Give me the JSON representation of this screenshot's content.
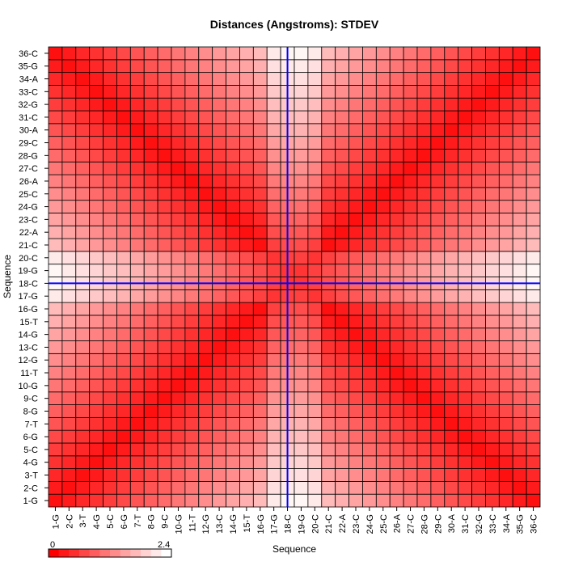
{
  "chart_data": {
    "type": "heatmap",
    "title": "Distances (Angstroms):  STDEV",
    "xlabel": "Sequence",
    "ylabel": "Sequence",
    "labels": [
      "1-G",
      "2-C",
      "3-T",
      "4-G",
      "5-C",
      "6-G",
      "7-T",
      "8-G",
      "9-C",
      "10-G",
      "11-T",
      "12-G",
      "13-C",
      "14-G",
      "15-T",
      "16-G",
      "17-G",
      "18-C",
      "19-G",
      "20-C",
      "21-C",
      "22-A",
      "23-C",
      "24-G",
      "25-C",
      "26-A",
      "27-C",
      "28-G",
      "29-C",
      "30-A",
      "31-C",
      "32-G",
      "33-C",
      "34-A",
      "35-G",
      "36-C"
    ],
    "colorbar": {
      "min_label": "0",
      "max_label": "2.4",
      "min": 0,
      "max": 2.4,
      "low_color": "#ff0000",
      "high_color": "#ffffff"
    },
    "crosshair": {
      "x": "18-C",
      "y": "18-C",
      "color": "#0000ff"
    },
    "grid": true,
    "values_note": "symmetric matrix; diagonal cells darkest red (near 0), anti-diagonal also dark, lighter near middle rows/columns"
  },
  "colors": {
    "low": "#ff0000",
    "high": "#ffffff",
    "crosshair": "#0000ff",
    "grid": "#000000"
  }
}
